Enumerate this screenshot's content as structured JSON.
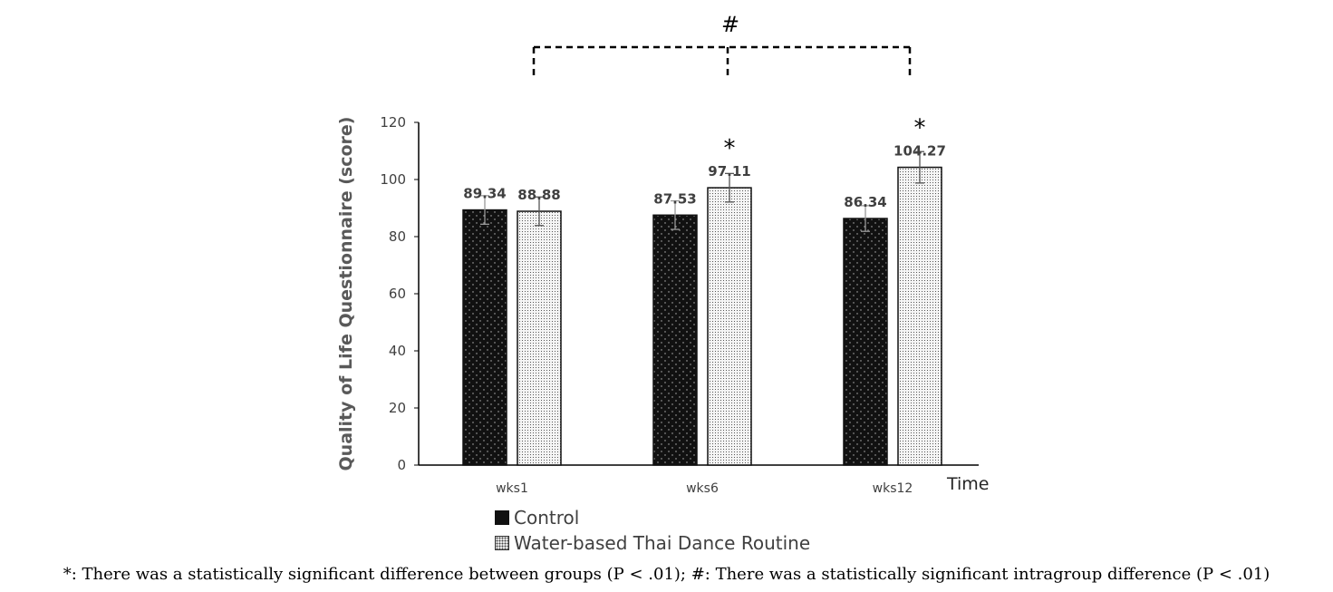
{
  "chart_data": {
    "type": "bar",
    "categories": [
      "wks1",
      "wks6",
      "wks12"
    ],
    "series": [
      {
        "name": "Control",
        "values": [
          89.34,
          87.53,
          86.34
        ],
        "data_labels": [
          "89.34",
          "87.53",
          "86.34"
        ],
        "error": [
          5,
          5,
          4.5
        ],
        "fill": "#111111"
      },
      {
        "name": "Water-based Thai Dance Routine",
        "values": [
          88.88,
          97.11,
          104.27
        ],
        "data_labels": [
          "88.88",
          "97.11",
          "104.27"
        ],
        "error": [
          5,
          5,
          5.5
        ],
        "fill": "#f3f3f3"
      }
    ],
    "ylabel": "Quality of Life Questionnaire (score)",
    "xlabel": "Time",
    "ylim": [
      0,
      120
    ],
    "yticks": [
      "0",
      "20",
      "40",
      "60",
      "80",
      "100",
      "120"
    ],
    "significance_between_groups": {
      "symbol": "*",
      "categories": [
        "wks6",
        "wks12"
      ]
    },
    "significance_intragroup": {
      "symbol": "#"
    },
    "grid": false,
    "legend_position": "bottom-left"
  },
  "footnote": "*: There was a statistically significant difference between groups (P < .01); #: There was a statistically significant intragroup difference (P < .01)"
}
